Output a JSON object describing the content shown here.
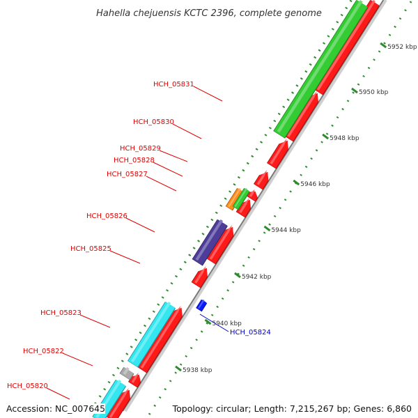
{
  "title": "Hahella chejuensis KCTC 2396, complete genome",
  "footer": {
    "accession": "Accession: NC_007645",
    "topology": "Topology: circular; Length: 7,215,267 bp; Genes: 6,860"
  },
  "colors": {
    "forward_gene": "#f0f0f0",
    "red_gene": "#ff1a1a",
    "green_gene": "#33cc33",
    "cyan_gene": "#33e6f0",
    "purple_gene": "#4d3d99",
    "orange_gene": "#ff8c1a",
    "blue_gene": "#0a1aff",
    "backbone": "#999999",
    "tick_green": "#2e8b2e",
    "label_red": "#e00000",
    "label_blue": "#0000cc"
  },
  "scale_labels": [
    "5952 kbp",
    "5950 kbp",
    "5948 kbp",
    "5946 kbp",
    "5944 kbp",
    "5942 kbp",
    "5940 kbp",
    "5938 kbp"
  ],
  "gene_labels": [
    {
      "id": "HCH_05831",
      "color": "red"
    },
    {
      "id": "HCH_05830",
      "color": "red"
    },
    {
      "id": "HCH_05829",
      "color": "red"
    },
    {
      "id": "HCH_05828",
      "color": "red"
    },
    {
      "id": "HCH_05827",
      "color": "red"
    },
    {
      "id": "HCH_05826",
      "color": "red"
    },
    {
      "id": "HCH_05825",
      "color": "red"
    },
    {
      "id": "HCH_05824",
      "color": "blue"
    },
    {
      "id": "HCH_05823",
      "color": "red"
    },
    {
      "id": "HCH_05822",
      "color": "red"
    },
    {
      "id": "HCH_05820",
      "color": "red"
    }
  ]
}
